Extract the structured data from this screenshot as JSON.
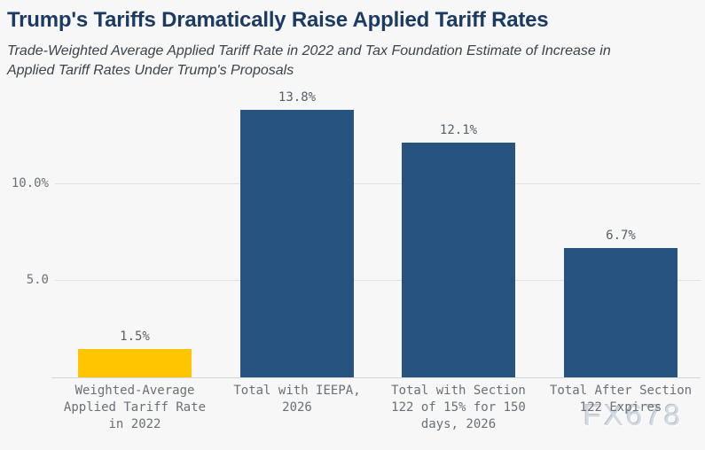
{
  "header": {
    "title": "Trump's Tariffs Dramatically Raise Applied Tariff Rates",
    "subtitle": "Trade-Weighted Average Applied Tariff Rate in 2022 and Tax Foundation Estimate of Increase in\nApplied Tariff Rates Under Trump's Proposals"
  },
  "watermark": "FX678",
  "colors": {
    "background": "#f7f7f7",
    "title": "#1b3b62",
    "subtitle": "#3c434a",
    "bar_yellow": "#ffc600",
    "bar_blue": "#26537f",
    "gridline": "#e1e1e1",
    "axis_line": "#d6d6d6",
    "tick_label": "#6b7076",
    "value_label": "#565e66",
    "watermark": "#d3dae2"
  },
  "chart_data": {
    "type": "bar",
    "title": "Trump's Tariffs Dramatically Raise Applied Tariff Rates",
    "subtitle": "Trade-Weighted Average Applied Tariff Rate in 2022 and Tax Foundation Estimate of Increase in Applied Tariff Rates Under Trump's Proposals",
    "categories": [
      "Weighted-Average\nApplied Tariff Rate\nin 2022",
      "Total with IEEPA,\n2026",
      "Total with Section\n122 of 15% for 150\ndays, 2026",
      "Total After Section\n122 Expires"
    ],
    "values": [
      1.5,
      13.8,
      12.1,
      6.7
    ],
    "value_labels": [
      "1.5%",
      "13.8%",
      "12.1%",
      "6.7%"
    ],
    "bar_colors": [
      "#ffc600",
      "#26537f",
      "#26537f",
      "#26537f"
    ],
    "yticks": [
      {
        "value": 5,
        "label": "5.0"
      },
      {
        "value": 10,
        "label": "10.0%"
      }
    ],
    "ylim": [
      0,
      14.9
    ],
    "xlabel": "",
    "ylabel": "",
    "grid": "horizontal",
    "legend": "none"
  }
}
